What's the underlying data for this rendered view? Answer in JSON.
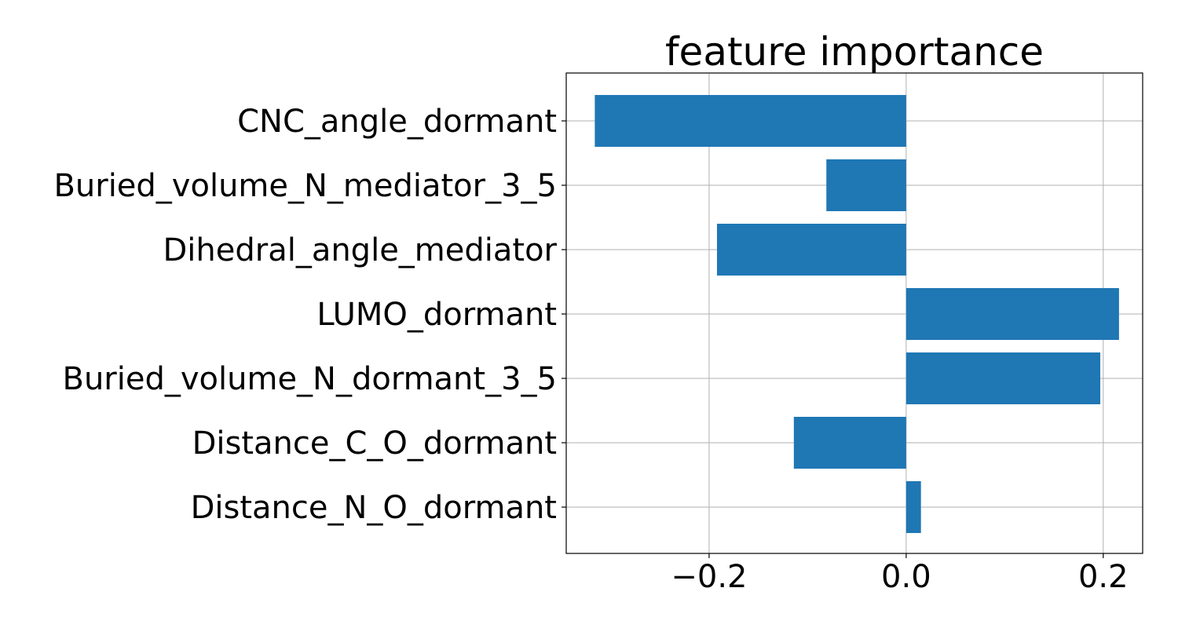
{
  "chart_data": {
    "type": "bar",
    "orientation": "horizontal",
    "title": "feature importance",
    "xlabel": "",
    "ylabel": "",
    "categories": [
      "CNC_angle_dormant",
      "Buried_volume_N_mediator_3_5",
      "Dihedral_angle_mediator",
      "LUMO_dormant",
      "Buried_volume_N_dormant_3_5",
      "Distance_C_O_dormant",
      "Distance_N_O_dormant"
    ],
    "values": [
      -0.316,
      -0.081,
      -0.192,
      0.216,
      0.197,
      -0.114,
      0.015
    ],
    "xlim": [
      -0.345,
      0.24
    ],
    "xticks": [
      -0.2,
      0.0,
      0.2
    ],
    "xtick_labels": [
      "−0.2",
      "0.0",
      "0.2"
    ],
    "grid": true,
    "bar_color": "#1f77b4"
  }
}
